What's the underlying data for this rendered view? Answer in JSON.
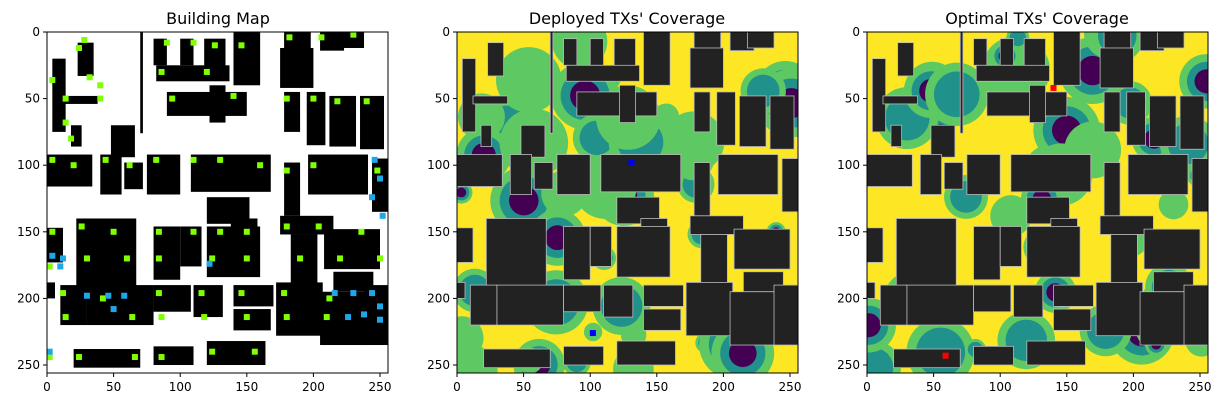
{
  "chart_data": [
    {
      "type": "heatmap",
      "title": "Building Map",
      "xlabel": "",
      "ylabel": "",
      "xlim": [
        0,
        256
      ],
      "ylim": [
        256,
        0
      ],
      "x_ticks": [
        0,
        50,
        100,
        150,
        200,
        250
      ],
      "y_ticks": [
        0,
        50,
        100,
        150,
        200,
        250
      ],
      "colors": {
        "background": "#ffffff",
        "building": "#000000",
        "candidate_site": "#7fff00",
        "deployed_site": "#1ea7e8"
      },
      "buildings": [
        [
          23,
          8,
          12,
          25
        ],
        [
          4,
          20,
          10,
          55
        ],
        [
          12,
          48,
          26,
          6
        ],
        [
          70,
          0,
          2,
          76
        ],
        [
          18,
          70,
          8,
          16
        ],
        [
          48,
          70,
          18,
          24
        ],
        [
          80,
          5,
          10,
          20
        ],
        [
          100,
          5,
          10,
          20
        ],
        [
          118,
          5,
          16,
          30
        ],
        [
          140,
          0,
          20,
          40
        ],
        [
          178,
          0,
          20,
          18
        ],
        [
          205,
          0,
          18,
          14
        ],
        [
          218,
          0,
          20,
          12
        ],
        [
          82,
          25,
          55,
          12
        ],
        [
          90,
          45,
          60,
          18
        ],
        [
          122,
          40,
          12,
          28
        ],
        [
          175,
          12,
          25,
          30
        ],
        [
          178,
          45,
          12,
          30
        ],
        [
          195,
          45,
          14,
          40
        ],
        [
          212,
          48,
          20,
          38
        ],
        [
          235,
          48,
          18,
          40
        ],
        [
          0,
          92,
          34,
          24
        ],
        [
          40,
          92,
          16,
          30
        ],
        [
          58,
          98,
          14,
          20
        ],
        [
          75,
          92,
          25,
          30
        ],
        [
          108,
          92,
          60,
          28
        ],
        [
          120,
          124,
          32,
          20
        ],
        [
          138,
          140,
          20,
          20
        ],
        [
          178,
          98,
          12,
          40
        ],
        [
          196,
          92,
          45,
          30
        ],
        [
          244,
          95,
          12,
          40
        ],
        [
          0,
          147,
          12,
          26
        ],
        [
          22,
          140,
          45,
          52
        ],
        [
          80,
          146,
          20,
          40
        ],
        [
          100,
          146,
          16,
          30
        ],
        [
          120,
          146,
          40,
          38
        ],
        [
          175,
          138,
          40,
          14
        ],
        [
          183,
          152,
          20,
          40
        ],
        [
          208,
          148,
          42,
          30
        ],
        [
          215,
          180,
          30,
          15
        ],
        [
          0,
          188,
          6,
          12
        ],
        [
          10,
          190,
          20,
          30
        ],
        [
          30,
          190,
          50,
          30
        ],
        [
          80,
          190,
          28,
          20
        ],
        [
          110,
          190,
          22,
          24
        ],
        [
          140,
          190,
          30,
          16
        ],
        [
          140,
          208,
          28,
          16
        ],
        [
          172,
          188,
          35,
          40
        ],
        [
          205,
          195,
          35,
          40
        ],
        [
          238,
          190,
          18,
          45
        ],
        [
          20,
          238,
          50,
          14
        ],
        [
          80,
          236,
          30,
          14
        ],
        [
          120,
          232,
          44,
          18
        ]
      ],
      "candidate_sites": [
        [
          28,
          6
        ],
        [
          24,
          12
        ],
        [
          32,
          34
        ],
        [
          40,
          40
        ],
        [
          14,
          50
        ],
        [
          40,
          50
        ],
        [
          4,
          36
        ],
        [
          14,
          68
        ],
        [
          18,
          80
        ],
        [
          90,
          8
        ],
        [
          110,
          8
        ],
        [
          126,
          10
        ],
        [
          146,
          10
        ],
        [
          182,
          4
        ],
        [
          206,
          4
        ],
        [
          230,
          2
        ],
        [
          86,
          30
        ],
        [
          120,
          30
        ],
        [
          94,
          50
        ],
        [
          140,
          48
        ],
        [
          180,
          50
        ],
        [
          200,
          50
        ],
        [
          218,
          52
        ],
        [
          240,
          52
        ],
        [
          4,
          96
        ],
        [
          20,
          100
        ],
        [
          44,
          96
        ],
        [
          62,
          100
        ],
        [
          82,
          96
        ],
        [
          110,
          96
        ],
        [
          130,
          96
        ],
        [
          160,
          100
        ],
        [
          180,
          104
        ],
        [
          200,
          100
        ],
        [
          248,
          104
        ],
        [
          4,
          150
        ],
        [
          26,
          146
        ],
        [
          50,
          150
        ],
        [
          84,
          150
        ],
        [
          110,
          150
        ],
        [
          130,
          150
        ],
        [
          150,
          150
        ],
        [
          180,
          146
        ],
        [
          204,
          146
        ],
        [
          236,
          150
        ],
        [
          2,
          176
        ],
        [
          30,
          170
        ],
        [
          60,
          170
        ],
        [
          84,
          170
        ],
        [
          124,
          170
        ],
        [
          150,
          170
        ],
        [
          190,
          170
        ],
        [
          220,
          170
        ],
        [
          250,
          170
        ],
        [
          12,
          196
        ],
        [
          42,
          200
        ],
        [
          84,
          196
        ],
        [
          116,
          196
        ],
        [
          146,
          196
        ],
        [
          178,
          196
        ],
        [
          212,
          200
        ],
        [
          14,
          214
        ],
        [
          64,
          214
        ],
        [
          86,
          214
        ],
        [
          118,
          214
        ],
        [
          150,
          214
        ],
        [
          180,
          214
        ],
        [
          210,
          214
        ],
        [
          24,
          244
        ],
        [
          66,
          244
        ],
        [
          86,
          244
        ],
        [
          124,
          240
        ],
        [
          156,
          240
        ],
        [
          2,
          244
        ]
      ],
      "deployed_sites": [
        [
          246,
          96
        ],
        [
          250,
          110
        ],
        [
          244,
          124
        ],
        [
          252,
          138
        ],
        [
          4,
          168
        ],
        [
          12,
          170
        ],
        [
          10,
          176
        ],
        [
          122,
          174
        ],
        [
          30,
          198
        ],
        [
          46,
          198
        ],
        [
          58,
          198
        ],
        [
          50,
          208
        ],
        [
          216,
          196
        ],
        [
          230,
          196
        ],
        [
          244,
          196
        ],
        [
          250,
          206
        ],
        [
          226,
          214
        ],
        [
          238,
          212
        ],
        [
          250,
          216
        ],
        [
          2,
          240
        ]
      ]
    },
    {
      "type": "heatmap",
      "title": "Deployed TXs' Coverage",
      "xlabel": "",
      "ylabel": "",
      "xlim": [
        0,
        256
      ],
      "ylim": [
        256,
        0
      ],
      "x_ticks": [
        0,
        50,
        100,
        150,
        200,
        250
      ],
      "y_ticks": [
        0,
        50,
        100,
        150,
        200,
        250
      ],
      "colormap": [
        "#440154",
        "#21918c",
        "#5ec962",
        "#fde725"
      ],
      "building_color": "#222222",
      "transmitters": [
        [
          131,
          98
        ],
        [
          102,
          226
        ]
      ],
      "transmitter_color": "#0000ff"
    },
    {
      "type": "heatmap",
      "title": "Optimal TXs' Coverage",
      "xlabel": "",
      "ylabel": "",
      "xlim": [
        0,
        256
      ],
      "ylim": [
        256,
        0
      ],
      "x_ticks": [
        0,
        50,
        100,
        150,
        200,
        250
      ],
      "y_ticks": [
        0,
        50,
        100,
        150,
        200,
        250
      ],
      "colormap": [
        "#440154",
        "#21918c",
        "#5ec962",
        "#fde725"
      ],
      "building_color": "#222222",
      "transmitters": [
        [
          140,
          42
        ],
        [
          59,
          243
        ]
      ],
      "transmitter_color": "#ff0000"
    }
  ]
}
